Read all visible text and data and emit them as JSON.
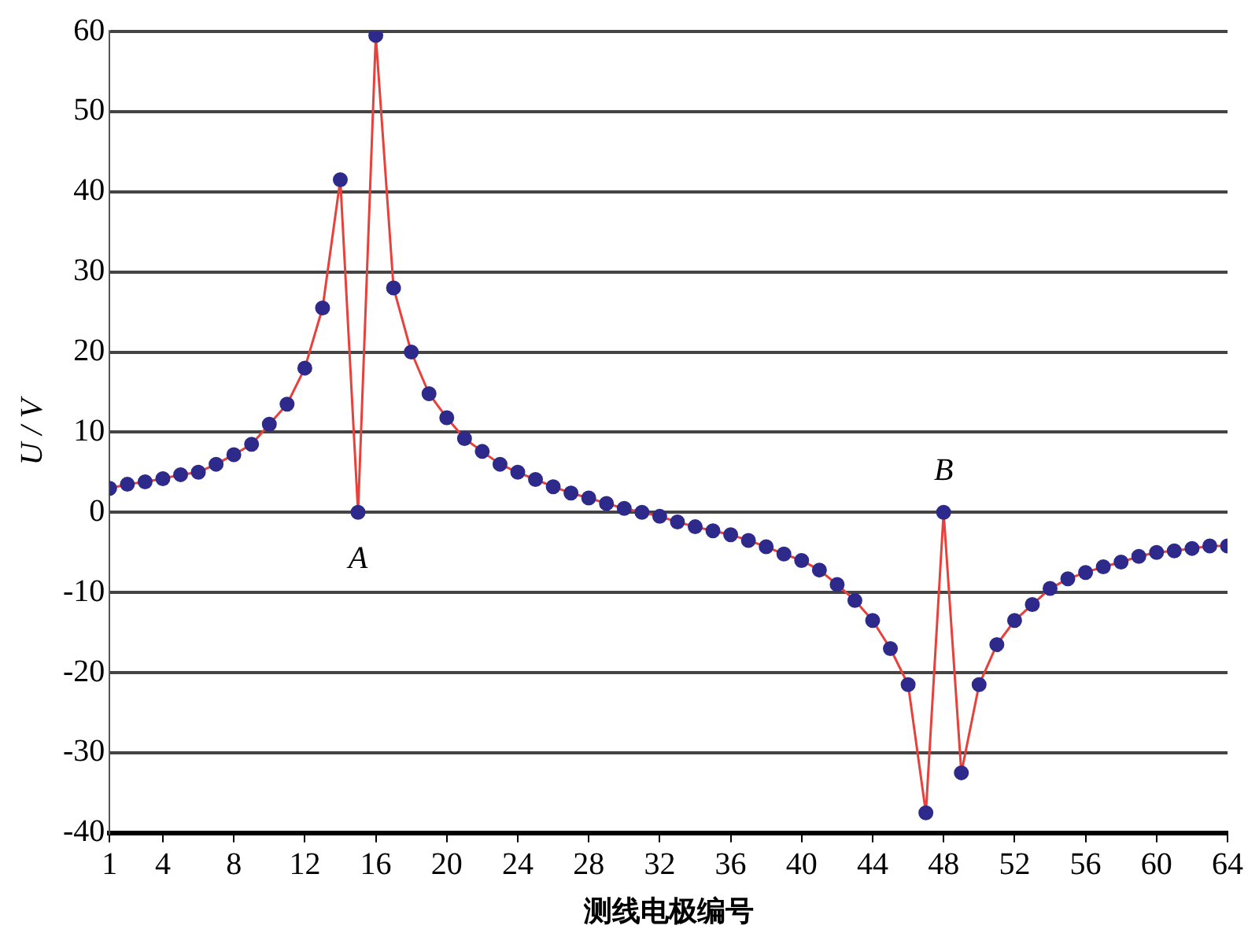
{
  "chart_data": {
    "type": "line",
    "xlabel": "测线电极编号",
    "ylabel": "U / V",
    "xlim": [
      1,
      64
    ],
    "xticks": [
      1,
      4,
      8,
      12,
      16,
      20,
      24,
      28,
      32,
      36,
      40,
      44,
      48,
      52,
      56,
      60,
      64
    ],
    "ylim": [
      -40,
      60
    ],
    "yticks": [
      -40,
      -30,
      -20,
      -10,
      0,
      10,
      20,
      30,
      40,
      50,
      60
    ],
    "grid": "y",
    "legend": false,
    "marker": "circle",
    "line_style": "solid",
    "x": [
      1,
      2,
      3,
      4,
      5,
      6,
      7,
      8,
      9,
      10,
      11,
      12,
      13,
      14,
      15,
      16,
      17,
      18,
      19,
      20,
      21,
      22,
      23,
      24,
      25,
      26,
      27,
      28,
      29,
      30,
      31,
      32,
      33,
      34,
      35,
      36,
      37,
      38,
      39,
      40,
      41,
      42,
      43,
      44,
      45,
      46,
      47,
      48,
      49,
      50,
      51,
      52,
      53,
      54,
      55,
      56,
      57,
      58,
      59,
      60,
      61,
      62,
      63,
      64
    ],
    "series": [
      {
        "color": "#e8403a",
        "colors": [
          "#2e2a8c",
          "#2e2a8c",
          "#2e2a8c",
          "#2e2a8c",
          "#2e2a8c",
          "#2e2a8c",
          "#2e2a8c",
          "#2e2a8c",
          "#2e2a8c",
          "#2e2a8c",
          "#2e2a8c",
          "#2e2a8c",
          "#2e2a8c",
          "#2e2a8c",
          "#2e2a8c",
          "#2e2a8c",
          "#2e2a8c",
          "#2e2a8c",
          "#2e2a8c",
          "#2e2a8c",
          "#2e2a8c",
          "#2e2a8c",
          "#2e2a8c",
          "#2e2a8c",
          "#2e2a8c",
          "#2e2a8c",
          "#2e2a8c",
          "#2e2a8c",
          "#2e2a8c",
          "#2e2a8c",
          "#2e2a8c",
          "#2e2a8c",
          "#2e2a8c",
          "#2e2a8c",
          "#2e2a8c",
          "#2e2a8c",
          "#2e2a8c",
          "#2e2a8c",
          "#2e2a8c",
          "#2e2a8c",
          "#2e2a8c",
          "#2e2a8c",
          "#2e2a8c",
          "#2e2a8c",
          "#2e2a8c",
          "#2e2a8c",
          "#2e2a8c",
          "#2e2a8c",
          "#2e2a8c",
          "#2e2a8c",
          "#2e2a8c",
          "#2e2a8c",
          "#2e2a8c",
          "#2e2a8c",
          "#2e2a8c",
          "#2e2a8c",
          "#2e2a8c",
          "#2e2a8c",
          "#2e2a8c",
          "#2e2a8c",
          "#2e2a8c",
          "#2e2a8c",
          "#2e2a8c",
          "#2e2a8c"
        ],
        "values": [
          3,
          3.5,
          3.8,
          4.2,
          4.7,
          5,
          6,
          7.2,
          8.5,
          11,
          13.5,
          18,
          25.5,
          41.5,
          0,
          59.5,
          28,
          20,
          14.8,
          11.8,
          9.2,
          7.6,
          6,
          5,
          4.1,
          3.2,
          2.4,
          1.8,
          1.1,
          0.5,
          0,
          -0.5,
          -1.2,
          -1.8,
          -2.3,
          -2.8,
          -3.5,
          -4.3,
          -5.2,
          -6,
          -7.2,
          -9,
          -11,
          -13.5,
          -17,
          -21.5,
          -37.5,
          0,
          -32.5,
          -21.5,
          -16.5,
          -13.5,
          -11.5,
          -9.5,
          -8.3,
          -7.5,
          -6.8,
          -6.2,
          -5.5,
          -5,
          -4.8,
          -4.5,
          -4.2,
          -4.2
        ]
      }
    ],
    "annotations": [
      {
        "text": "A",
        "x": 15,
        "y": 0
      },
      {
        "text": "B",
        "x": 48,
        "y": 0
      }
    ]
  }
}
